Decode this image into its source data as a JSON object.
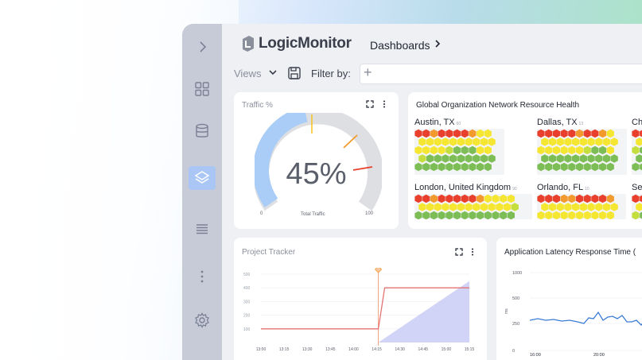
{
  "app": {
    "name": "LogicMonitor",
    "breadcrumb": "Dashboards"
  },
  "toolbar": {
    "views_label": "Views",
    "filter_label": "Filter by:",
    "add_symbol": "+"
  },
  "sidebar": {
    "icons": [
      "chevron-right-icon",
      "grid-icon",
      "database-icon",
      "layers-icon",
      "list-icon",
      "more-vertical-icon",
      "gear-icon"
    ],
    "active": "layers-icon"
  },
  "traffic": {
    "title": "Traffic %",
    "value_label": "45%",
    "value": 45,
    "min_label": "0",
    "max_label": "100",
    "caption": "Total Traffic"
  },
  "health": {
    "title": "Global Organization Network Resource Health",
    "cities": [
      {
        "name": "Austin, TX",
        "count": "60"
      },
      {
        "name": "Dallas, TX",
        "count": "13"
      },
      {
        "name": "Ch"
      },
      {
        "name": "London, United Kingdom",
        "count": "90"
      },
      {
        "name": "Orlando, FL",
        "count": "10"
      },
      {
        "name": "Se"
      }
    ]
  },
  "project": {
    "title": "Project Tracker",
    "chart_data": {
      "type": "line",
      "x": [
        "13:00",
        "13:15",
        "13:30",
        "13:45",
        "14:00",
        "14:15",
        "14:30",
        "14:45",
        "15:00",
        "15:15"
      ],
      "y_ticks": [
        "500",
        "400",
        "300",
        "200",
        "100"
      ],
      "series": [
        {
          "values": [
            100,
            100,
            100,
            100,
            100,
            100,
            400,
            400,
            400,
            400
          ]
        }
      ],
      "ylim": [
        0,
        500
      ],
      "marker_x": "14:15"
    }
  },
  "latency": {
    "title": "Application Latency Response Time (",
    "chart_data": {
      "type": "line",
      "ylabel": "ms",
      "y_ticks": [
        "1000",
        "500",
        "250",
        "0"
      ],
      "x_ticks": [
        "16:00",
        "20:00"
      ]
    }
  },
  "colors": {
    "red": "#e8402c",
    "orange": "#f29a2e",
    "yellow": "#f5e632",
    "lime": "#c3de3d",
    "green": "#7cbd55",
    "accent": "#a9c6f5"
  }
}
